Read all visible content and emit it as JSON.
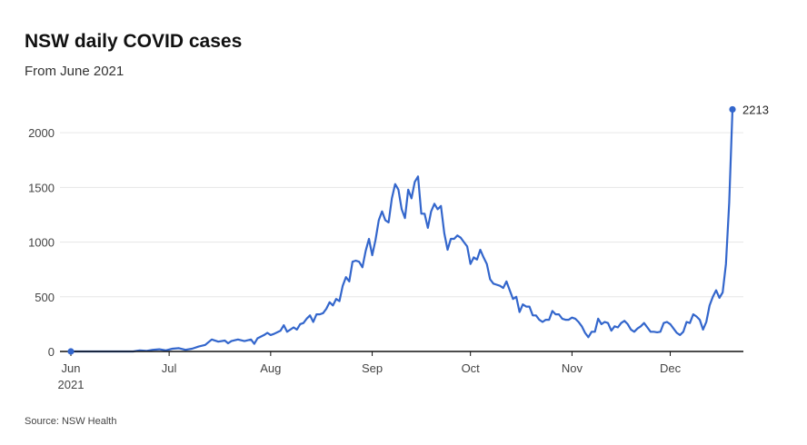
{
  "header": {
    "title": "NSW daily COVID cases",
    "subtitle": "From June 2021"
  },
  "footer": {
    "source": "Source: NSW Health"
  },
  "colors": {
    "line": "#3366cc",
    "grid": "#e6e6e6",
    "axis": "#111111"
  },
  "chart_data": {
    "type": "line",
    "title": "NSW daily COVID cases",
    "subtitle": "From June 2021",
    "xlabel": "",
    "ylabel": "",
    "ylim": [
      0,
      2300
    ],
    "yticks": [
      0,
      500,
      1000,
      1500,
      2000
    ],
    "xlim": [
      "2021-06-01",
      "2021-12-20"
    ],
    "xticks": [
      {
        "date": "2021-06-01",
        "label": "Jun",
        "sublabel": "2021"
      },
      {
        "date": "2021-07-01",
        "label": "Jul",
        "sublabel": ""
      },
      {
        "date": "2021-08-01",
        "label": "Aug",
        "sublabel": ""
      },
      {
        "date": "2021-09-01",
        "label": "Sep",
        "sublabel": ""
      },
      {
        "date": "2021-10-01",
        "label": "Oct",
        "sublabel": ""
      },
      {
        "date": "2021-11-01",
        "label": "Nov",
        "sublabel": ""
      },
      {
        "date": "2021-12-01",
        "label": "Dec",
        "sublabel": ""
      }
    ],
    "grid": true,
    "end_label": "2213",
    "series": [
      {
        "points": [
          [
            "2021-06-01",
            0
          ],
          [
            "2021-06-10",
            0
          ],
          [
            "2021-06-20",
            0
          ],
          [
            "2021-06-22",
            10
          ],
          [
            "2021-06-24",
            5
          ],
          [
            "2021-06-26",
            15
          ],
          [
            "2021-06-28",
            20
          ],
          [
            "2021-06-30",
            10
          ],
          [
            "2021-07-02",
            25
          ],
          [
            "2021-07-04",
            30
          ],
          [
            "2021-07-06",
            15
          ],
          [
            "2021-07-08",
            25
          ],
          [
            "2021-07-10",
            45
          ],
          [
            "2021-07-12",
            60
          ],
          [
            "2021-07-14",
            110
          ],
          [
            "2021-07-16",
            90
          ],
          [
            "2021-07-18",
            100
          ],
          [
            "2021-07-19",
            75
          ],
          [
            "2021-07-20",
            95
          ],
          [
            "2021-07-22",
            110
          ],
          [
            "2021-07-24",
            95
          ],
          [
            "2021-07-26",
            110
          ],
          [
            "2021-07-27",
            70
          ],
          [
            "2021-07-28",
            120
          ],
          [
            "2021-07-30",
            150
          ],
          [
            "2021-07-31",
            170
          ],
          [
            "2021-08-01",
            150
          ],
          [
            "2021-08-02",
            160
          ],
          [
            "2021-08-04",
            190
          ],
          [
            "2021-08-05",
            240
          ],
          [
            "2021-08-06",
            180
          ],
          [
            "2021-08-08",
            220
          ],
          [
            "2021-08-09",
            200
          ],
          [
            "2021-08-10",
            250
          ],
          [
            "2021-08-11",
            260
          ],
          [
            "2021-08-12",
            300
          ],
          [
            "2021-08-13",
            330
          ],
          [
            "2021-08-14",
            270
          ],
          [
            "2021-08-15",
            340
          ],
          [
            "2021-08-16",
            340
          ],
          [
            "2021-08-17",
            350
          ],
          [
            "2021-08-18",
            390
          ],
          [
            "2021-08-19",
            450
          ],
          [
            "2021-08-20",
            420
          ],
          [
            "2021-08-21",
            480
          ],
          [
            "2021-08-22",
            460
          ],
          [
            "2021-08-23",
            600
          ],
          [
            "2021-08-24",
            680
          ],
          [
            "2021-08-25",
            640
          ],
          [
            "2021-08-26",
            820
          ],
          [
            "2021-08-27",
            830
          ],
          [
            "2021-08-28",
            820
          ],
          [
            "2021-08-29",
            770
          ],
          [
            "2021-08-30",
            920
          ],
          [
            "2021-08-31",
            1030
          ],
          [
            "2021-09-01",
            880
          ],
          [
            "2021-09-02",
            1020
          ],
          [
            "2021-09-03",
            1200
          ],
          [
            "2021-09-04",
            1280
          ],
          [
            "2021-09-05",
            1200
          ],
          [
            "2021-09-06",
            1180
          ],
          [
            "2021-09-07",
            1400
          ],
          [
            "2021-09-08",
            1530
          ],
          [
            "2021-09-09",
            1480
          ],
          [
            "2021-09-10",
            1300
          ],
          [
            "2021-09-11",
            1220
          ],
          [
            "2021-09-12",
            1480
          ],
          [
            "2021-09-13",
            1400
          ],
          [
            "2021-09-14",
            1550
          ],
          [
            "2021-09-15",
            1600
          ],
          [
            "2021-09-16",
            1260
          ],
          [
            "2021-09-17",
            1260
          ],
          [
            "2021-09-18",
            1130
          ],
          [
            "2021-09-19",
            1280
          ],
          [
            "2021-09-20",
            1350
          ],
          [
            "2021-09-21",
            1300
          ],
          [
            "2021-09-22",
            1330
          ],
          [
            "2021-09-23",
            1080
          ],
          [
            "2021-09-24",
            930
          ],
          [
            "2021-09-25",
            1030
          ],
          [
            "2021-09-26",
            1030
          ],
          [
            "2021-09-27",
            1060
          ],
          [
            "2021-09-28",
            1040
          ],
          [
            "2021-09-29",
            1000
          ],
          [
            "2021-09-30",
            960
          ],
          [
            "2021-10-01",
            800
          ],
          [
            "2021-10-02",
            860
          ],
          [
            "2021-10-03",
            840
          ],
          [
            "2021-10-04",
            930
          ],
          [
            "2021-10-05",
            860
          ],
          [
            "2021-10-06",
            800
          ],
          [
            "2021-10-07",
            660
          ],
          [
            "2021-10-08",
            620
          ],
          [
            "2021-10-09",
            610
          ],
          [
            "2021-10-10",
            600
          ],
          [
            "2021-10-11",
            580
          ],
          [
            "2021-10-12",
            640
          ],
          [
            "2021-10-13",
            560
          ],
          [
            "2021-10-14",
            480
          ],
          [
            "2021-10-15",
            500
          ],
          [
            "2021-10-16",
            360
          ],
          [
            "2021-10-17",
            430
          ],
          [
            "2021-10-18",
            410
          ],
          [
            "2021-10-19",
            410
          ],
          [
            "2021-10-20",
            330
          ],
          [
            "2021-10-21",
            330
          ],
          [
            "2021-10-22",
            290
          ],
          [
            "2021-10-23",
            270
          ],
          [
            "2021-10-24",
            290
          ],
          [
            "2021-10-25",
            290
          ],
          [
            "2021-10-26",
            370
          ],
          [
            "2021-10-27",
            340
          ],
          [
            "2021-10-28",
            340
          ],
          [
            "2021-10-29",
            300
          ],
          [
            "2021-10-30",
            290
          ],
          [
            "2021-10-31",
            290
          ],
          [
            "2021-11-01",
            310
          ],
          [
            "2021-11-02",
            300
          ],
          [
            "2021-11-03",
            270
          ],
          [
            "2021-11-04",
            230
          ],
          [
            "2021-11-05",
            170
          ],
          [
            "2021-11-06",
            130
          ],
          [
            "2021-11-07",
            180
          ],
          [
            "2021-11-08",
            180
          ],
          [
            "2021-11-09",
            300
          ],
          [
            "2021-11-10",
            250
          ],
          [
            "2021-11-11",
            270
          ],
          [
            "2021-11-12",
            260
          ],
          [
            "2021-11-13",
            190
          ],
          [
            "2021-11-14",
            230
          ],
          [
            "2021-11-15",
            220
          ],
          [
            "2021-11-16",
            260
          ],
          [
            "2021-11-17",
            280
          ],
          [
            "2021-11-18",
            250
          ],
          [
            "2021-11-19",
            200
          ],
          [
            "2021-11-20",
            180
          ],
          [
            "2021-11-21",
            210
          ],
          [
            "2021-11-22",
            230
          ],
          [
            "2021-11-23",
            260
          ],
          [
            "2021-11-24",
            220
          ],
          [
            "2021-11-25",
            180
          ],
          [
            "2021-11-26",
            180
          ],
          [
            "2021-11-27",
            175
          ],
          [
            "2021-11-28",
            180
          ],
          [
            "2021-11-29",
            260
          ],
          [
            "2021-11-30",
            270
          ],
          [
            "2021-12-01",
            250
          ],
          [
            "2021-12-02",
            210
          ],
          [
            "2021-12-03",
            170
          ],
          [
            "2021-12-04",
            150
          ],
          [
            "2021-12-05",
            180
          ],
          [
            "2021-12-06",
            270
          ],
          [
            "2021-12-07",
            260
          ],
          [
            "2021-12-08",
            340
          ],
          [
            "2021-12-09",
            320
          ],
          [
            "2021-12-10",
            290
          ],
          [
            "2021-12-11",
            200
          ],
          [
            "2021-12-12",
            270
          ],
          [
            "2021-12-13",
            420
          ],
          [
            "2021-12-14",
            500
          ],
          [
            "2021-12-15",
            560
          ],
          [
            "2021-12-16",
            490
          ],
          [
            "2021-12-17",
            540
          ],
          [
            "2021-12-18",
            800
          ],
          [
            "2021-12-19",
            1360
          ],
          [
            "2021-12-20",
            2213
          ]
        ]
      }
    ]
  }
}
